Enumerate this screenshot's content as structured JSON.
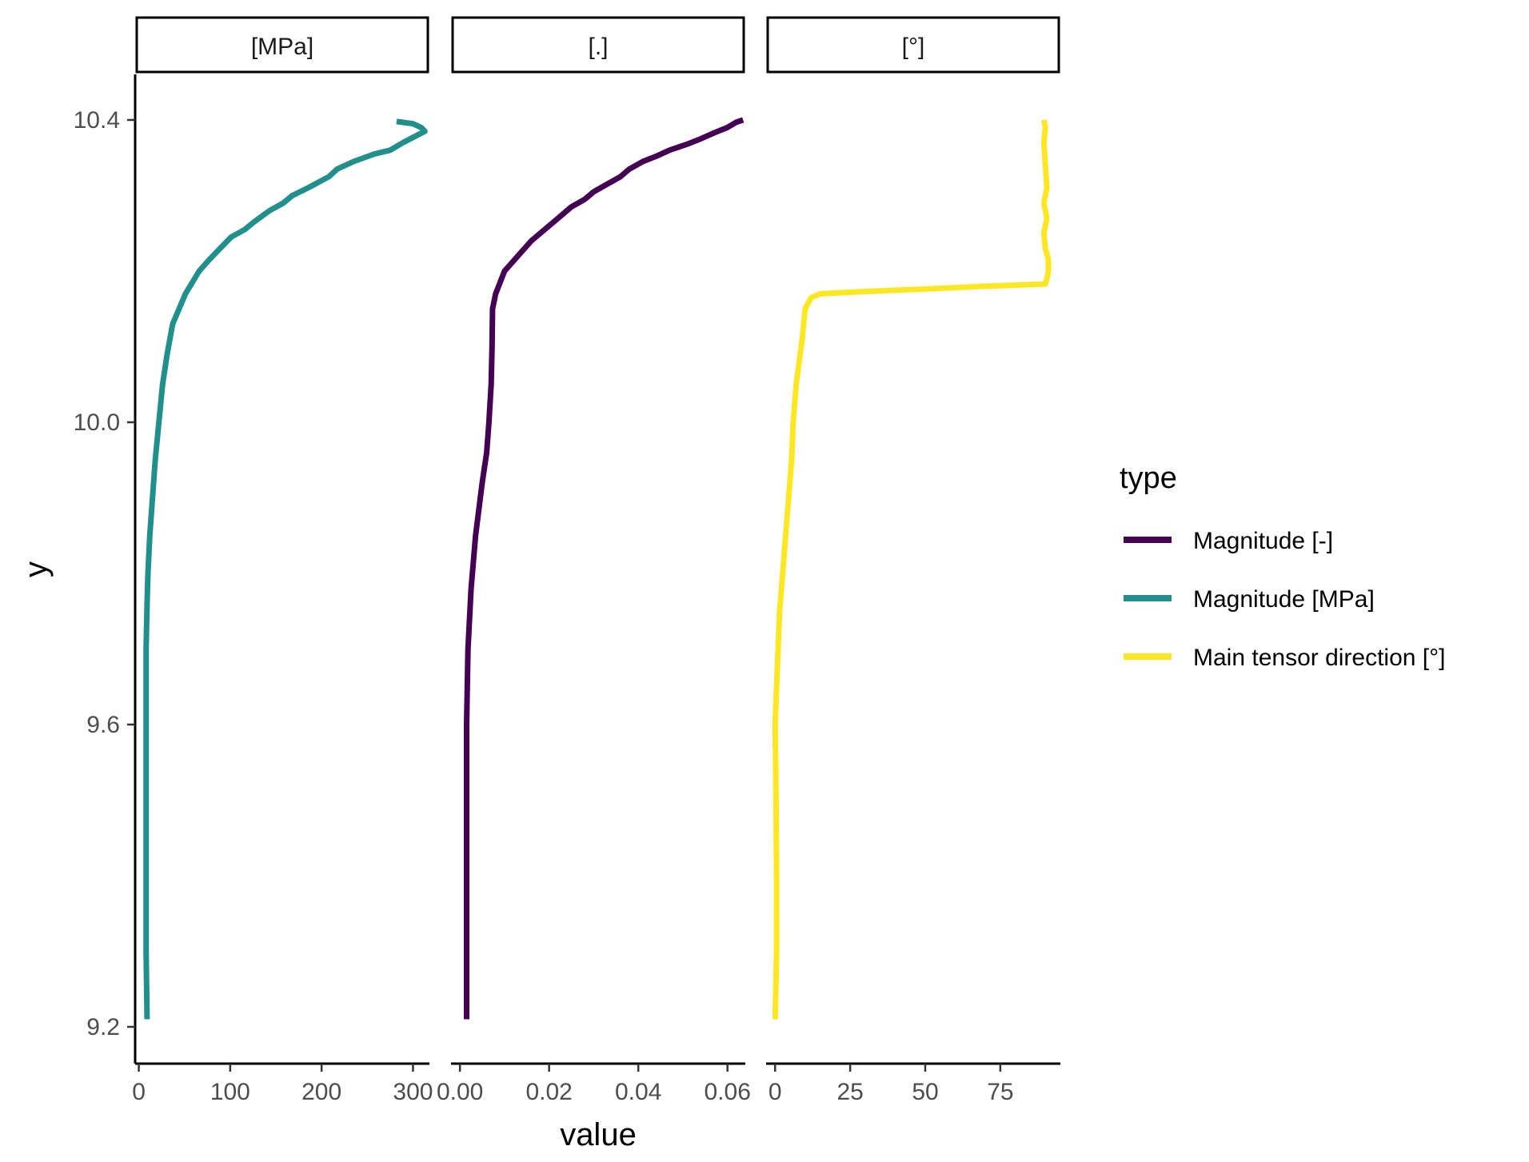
{
  "chart_data": {
    "type": "line",
    "xlabel": "value",
    "ylabel": "y",
    "ylim": [
      9.2,
      10.4
    ],
    "y_ticks": [
      "9.2",
      "9.6",
      "10.0",
      "10.4"
    ],
    "legend": {
      "title": "type",
      "placement": "right"
    },
    "series": [
      {
        "name": "Magnitude [-]",
        "color": "#440154"
      },
      {
        "name": "Magnitude [MPa]",
        "color": "#21908C"
      },
      {
        "name": "Main tensor direction [°]",
        "color": "#FDE725"
      }
    ],
    "panels": [
      {
        "strip": "[MPa]",
        "series": "Magnitude [MPa]",
        "xlim": [
          -4,
          318
        ],
        "x_ticks": [
          0,
          100,
          200,
          300
        ],
        "x_tick_labels": [
          "0",
          "100",
          "200",
          "300"
        ],
        "points": [
          [
            9,
            9.21
          ],
          [
            8,
            9.3
          ],
          [
            8,
            9.4
          ],
          [
            8,
            9.5
          ],
          [
            8,
            9.6
          ],
          [
            8,
            9.7
          ],
          [
            9,
            9.76
          ],
          [
            10,
            9.8
          ],
          [
            12,
            9.85
          ],
          [
            15,
            9.9
          ],
          [
            18,
            9.95
          ],
          [
            22,
            10.0
          ],
          [
            26,
            10.05
          ],
          [
            31,
            10.09
          ],
          [
            37,
            10.13
          ],
          [
            51,
            10.17
          ],
          [
            66,
            10.2
          ],
          [
            77,
            10.215
          ],
          [
            89,
            10.23
          ],
          [
            101,
            10.245
          ],
          [
            116,
            10.255
          ],
          [
            126,
            10.265
          ],
          [
            143,
            10.28
          ],
          [
            158,
            10.29
          ],
          [
            168,
            10.3
          ],
          [
            185,
            10.31
          ],
          [
            208,
            10.325
          ],
          [
            217,
            10.335
          ],
          [
            235,
            10.345
          ],
          [
            258,
            10.355
          ],
          [
            275,
            10.36
          ],
          [
            289,
            10.37
          ],
          [
            305,
            10.38
          ],
          [
            313,
            10.385
          ],
          [
            309,
            10.39
          ],
          [
            300,
            10.395
          ],
          [
            282,
            10.398
          ]
        ]
      },
      {
        "strip": "[.]",
        "series": "Magnitude [-]",
        "xlim": [
          -0.002,
          0.064
        ],
        "x_ticks": [
          0,
          0.02,
          0.04,
          0.06
        ],
        "x_tick_labels": [
          "0.00",
          "0.02",
          "0.04",
          "0.06"
        ],
        "points": [
          [
            0.0015,
            9.21
          ],
          [
            0.0015,
            9.3
          ],
          [
            0.0015,
            9.4
          ],
          [
            0.0015,
            9.5
          ],
          [
            0.0015,
            9.6
          ],
          [
            0.0018,
            9.7
          ],
          [
            0.0025,
            9.78
          ],
          [
            0.0035,
            9.85
          ],
          [
            0.005,
            9.92
          ],
          [
            0.006,
            9.96
          ],
          [
            0.0065,
            10.0
          ],
          [
            0.007,
            10.05
          ],
          [
            0.0072,
            10.1
          ],
          [
            0.0073,
            10.15
          ],
          [
            0.008,
            10.17
          ],
          [
            0.01,
            10.2
          ],
          [
            0.013,
            10.22
          ],
          [
            0.016,
            10.24
          ],
          [
            0.019,
            10.255
          ],
          [
            0.022,
            10.27
          ],
          [
            0.025,
            10.285
          ],
          [
            0.028,
            10.295
          ],
          [
            0.03,
            10.305
          ],
          [
            0.033,
            10.315
          ],
          [
            0.036,
            10.325
          ],
          [
            0.038,
            10.335
          ],
          [
            0.041,
            10.345
          ],
          [
            0.044,
            10.352
          ],
          [
            0.047,
            10.36
          ],
          [
            0.051,
            10.368
          ],
          [
            0.054,
            10.375
          ],
          [
            0.057,
            10.383
          ],
          [
            0.06,
            10.39
          ],
          [
            0.062,
            10.397
          ],
          [
            0.0635,
            10.4
          ]
        ]
      },
      {
        "strip": "[°]",
        "series": "Main tensor direction [°]",
        "xlim": [
          -3,
          95
        ],
        "x_ticks": [
          0,
          25,
          50,
          75
        ],
        "x_tick_labels": [
          "0",
          "25",
          "50",
          "75"
        ],
        "points": [
          [
            0,
            9.21
          ],
          [
            0.5,
            9.3
          ],
          [
            0.5,
            9.4
          ],
          [
            0.3,
            9.5
          ],
          [
            0,
            9.6
          ],
          [
            0.5,
            9.65
          ],
          [
            1,
            9.7
          ],
          [
            1.5,
            9.75
          ],
          [
            2.5,
            9.8
          ],
          [
            3.5,
            9.85
          ],
          [
            4.5,
            9.9
          ],
          [
            5.5,
            9.95
          ],
          [
            6,
            10.0
          ],
          [
            7,
            10.05
          ],
          [
            8,
            10.08
          ],
          [
            9,
            10.11
          ],
          [
            9.5,
            10.13
          ],
          [
            10,
            10.15
          ],
          [
            12,
            10.165
          ],
          [
            15,
            10.17
          ],
          [
            20,
            10.171
          ],
          [
            30,
            10.173
          ],
          [
            48,
            10.176
          ],
          [
            70,
            10.18
          ],
          [
            90,
            10.183
          ],
          [
            90.5,
            10.19
          ],
          [
            91,
            10.2
          ],
          [
            91,
            10.215
          ],
          [
            90,
            10.23
          ],
          [
            89.5,
            10.25
          ],
          [
            90.5,
            10.27
          ],
          [
            89.5,
            10.29
          ],
          [
            90.5,
            10.31
          ],
          [
            90,
            10.34
          ],
          [
            89.5,
            10.37
          ],
          [
            90,
            10.39
          ],
          [
            89.5,
            10.4
          ]
        ]
      }
    ]
  }
}
